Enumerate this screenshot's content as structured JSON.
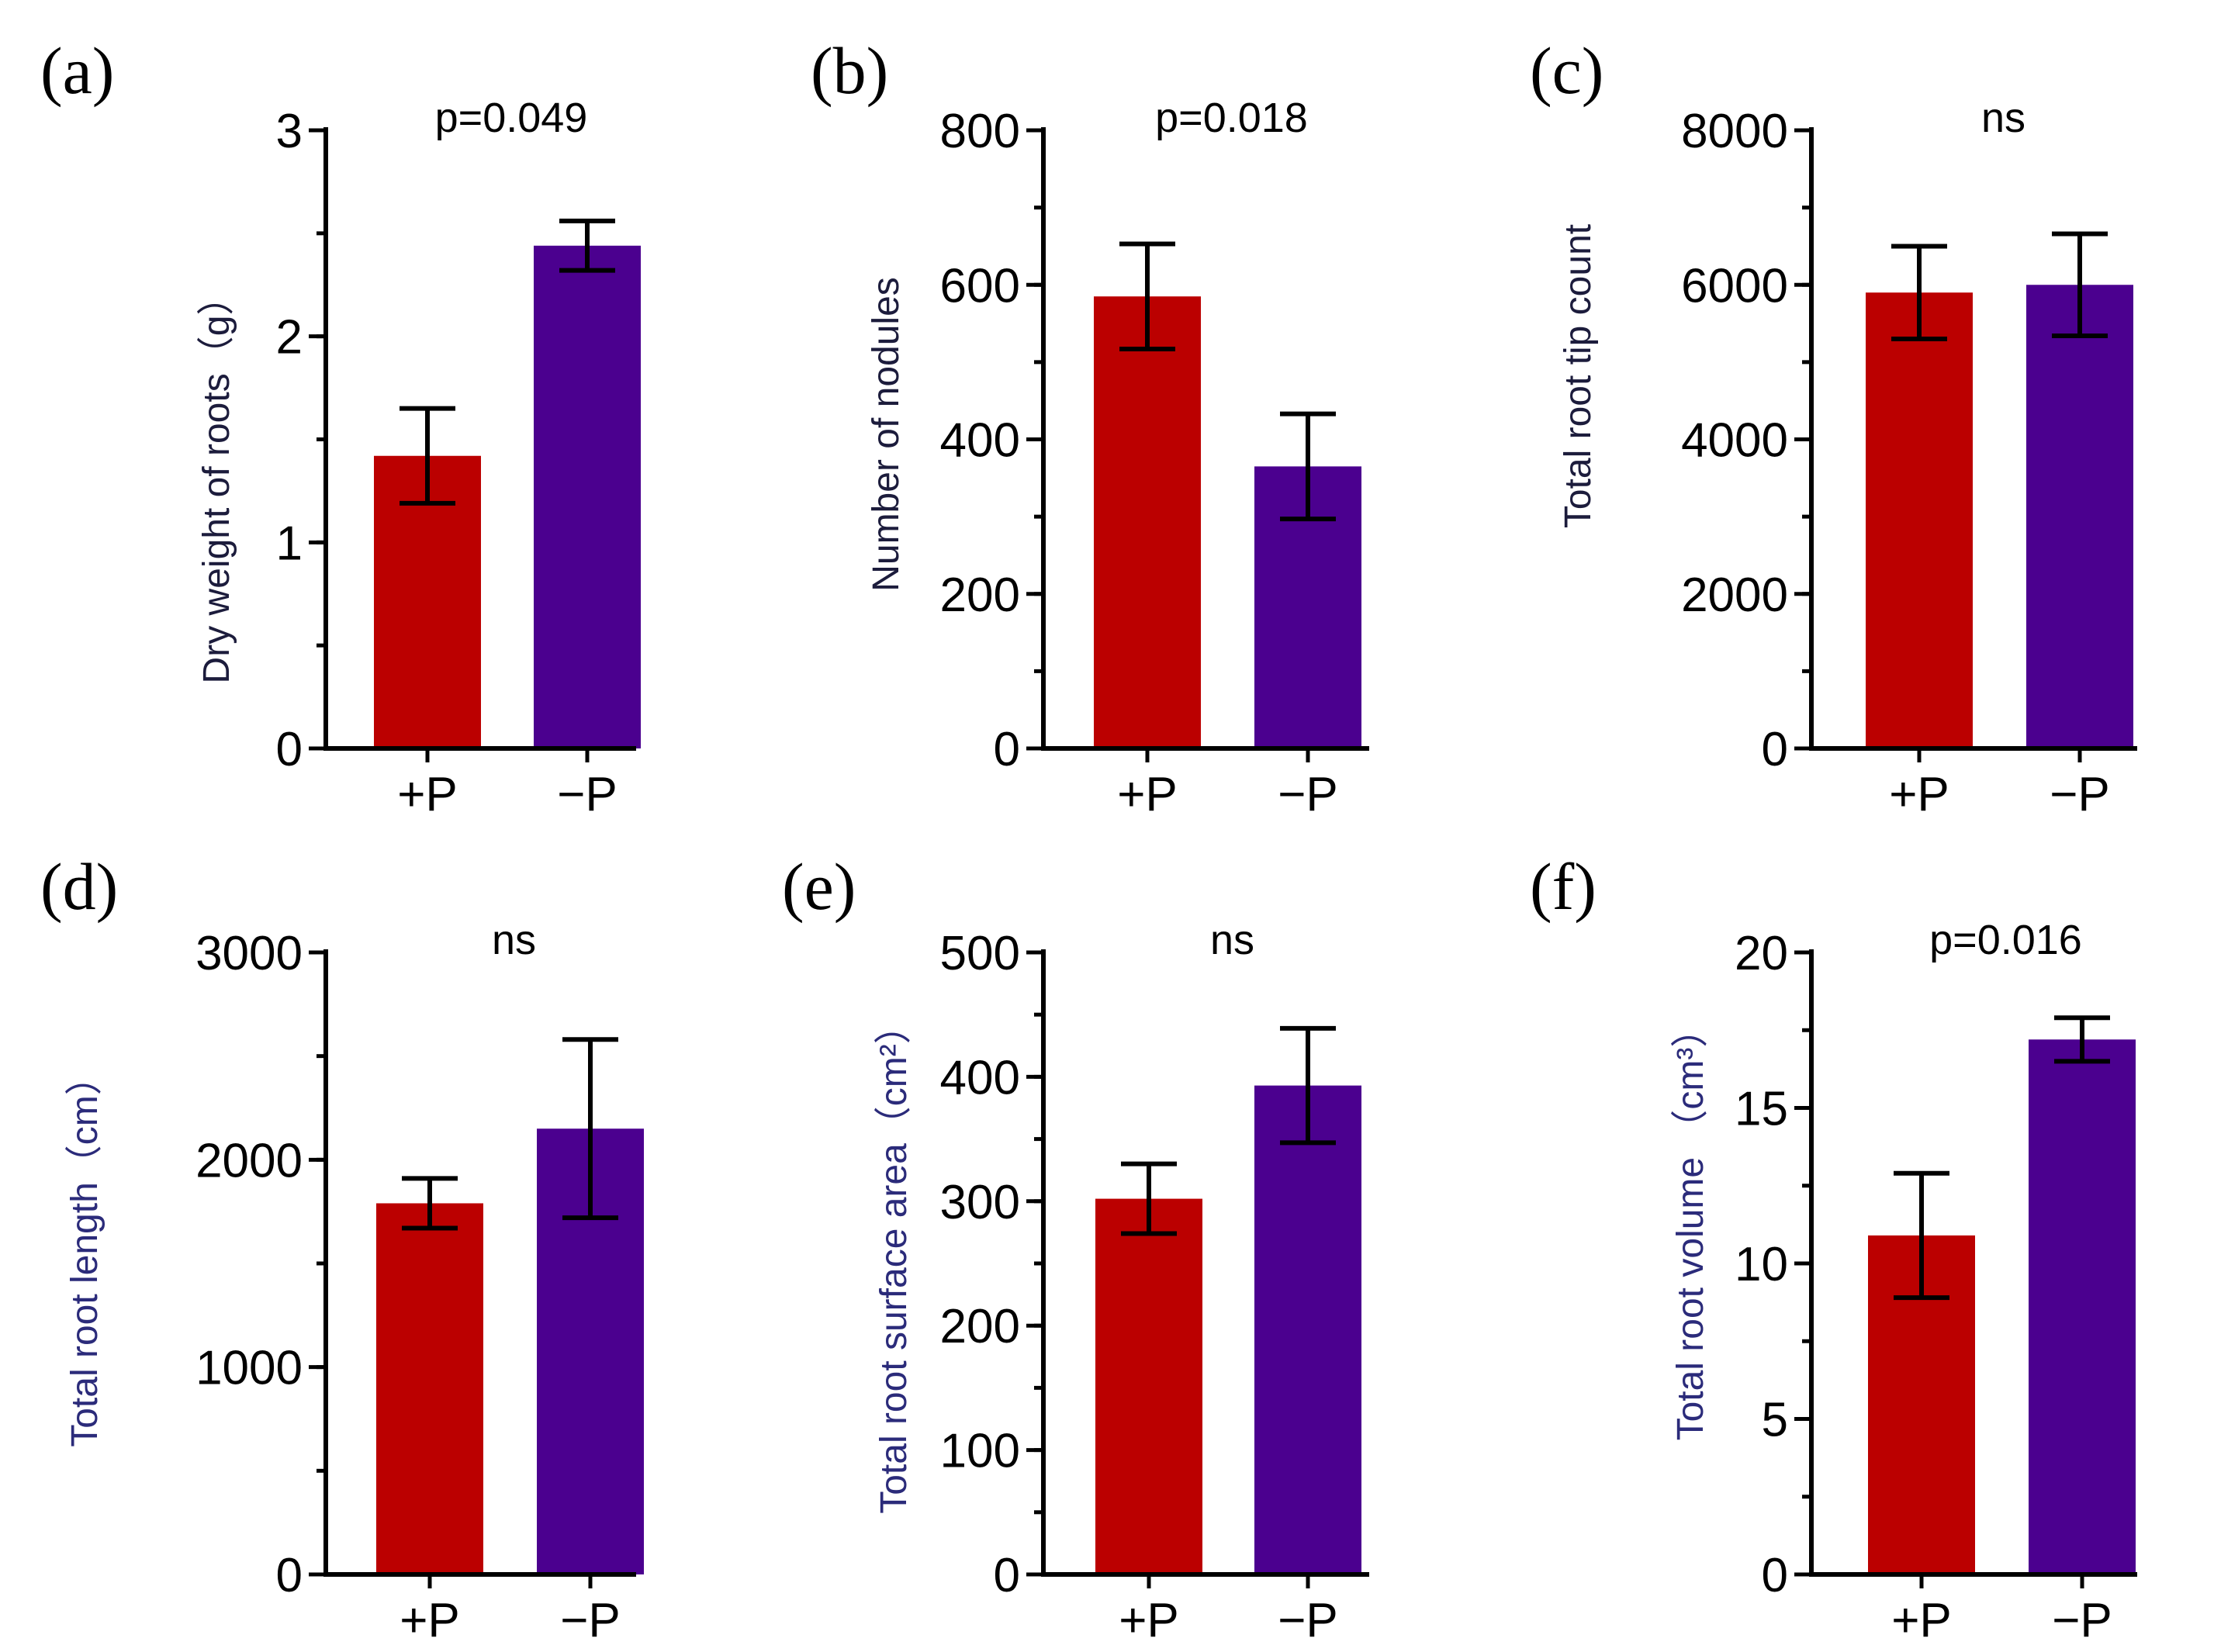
{
  "colors": {
    "plus": "#bb0000",
    "minus": "#4b008f",
    "axis": "#000000"
  },
  "chart_data": [
    {
      "type": "bar",
      "panel": "(a)",
      "categories": [
        "+P",
        "−P"
      ],
      "values": [
        1.42,
        2.44
      ],
      "errors": [
        0.23,
        0.12
      ],
      "ylabel": "Dry weight of roots（g）",
      "ylabel_color": "#1c1c3c",
      "annotation": "p=0.049",
      "ylim": [
        0,
        3
      ],
      "yticks": [
        {
          "v": 0,
          "t": "0"
        },
        {
          "v": 1,
          "t": "1"
        },
        {
          "v": 2,
          "t": "2"
        },
        {
          "v": 3,
          "t": "3"
        }
      ],
      "minor_step": 0.5
    },
    {
      "type": "bar",
      "panel": "(b)",
      "categories": [
        "+P",
        "−P"
      ],
      "values": [
        585,
        365
      ],
      "errors": [
        68,
        68
      ],
      "ylabel": "Number of nodules",
      "ylabel_color": "#1c1c3c",
      "annotation": "p=0.018",
      "ylim": [
        0,
        800
      ],
      "yticks": [
        {
          "v": 0,
          "t": "0"
        },
        {
          "v": 200,
          "t": "200"
        },
        {
          "v": 400,
          "t": "400"
        },
        {
          "v": 600,
          "t": "600"
        },
        {
          "v": 800,
          "t": "800"
        }
      ],
      "minor_step": 100
    },
    {
      "type": "bar",
      "panel": "(c)",
      "categories": [
        "+P",
        "−P"
      ],
      "values": [
        5900,
        6000
      ],
      "errors": [
        600,
        660
      ],
      "ylabel": "Total root tip count",
      "ylabel_color": "#1c1c3c",
      "annotation": "ns",
      "ylim": [
        0,
        8000
      ],
      "yticks": [
        {
          "v": 0,
          "t": "0"
        },
        {
          "v": 2000,
          "t": "2000"
        },
        {
          "v": 4000,
          "t": "4000"
        },
        {
          "v": 6000,
          "t": "6000"
        },
        {
          "v": 8000,
          "t": "8000"
        }
      ],
      "minor_step": 1000
    },
    {
      "type": "bar",
      "panel": "(d)",
      "categories": [
        "+P",
        "−P"
      ],
      "values": [
        1790,
        2150
      ],
      "errors": [
        120,
        430
      ],
      "ylabel": "Total root length（cm）",
      "ylabel_color": "#2b2b7a",
      "annotation": "ns",
      "ylim": [
        0,
        3000
      ],
      "yticks": [
        {
          "v": 0,
          "t": "0"
        },
        {
          "v": 1000,
          "t": "1000"
        },
        {
          "v": 2000,
          "t": "2000"
        },
        {
          "v": 3000,
          "t": "3000"
        }
      ],
      "minor_step": 500
    },
    {
      "type": "bar",
      "panel": "(e)",
      "categories": [
        "+P",
        "−P"
      ],
      "values": [
        302,
        393
      ],
      "errors": [
        28,
        46
      ],
      "ylabel": "Total root surface area（cm²）",
      "ylabel_color": "#2b2b7a",
      "annotation": "ns",
      "ylim": [
        0,
        500
      ],
      "yticks": [
        {
          "v": 0,
          "t": "0"
        },
        {
          "v": 100,
          "t": "100"
        },
        {
          "v": 200,
          "t": "200"
        },
        {
          "v": 300,
          "t": "300"
        },
        {
          "v": 400,
          "t": "400"
        },
        {
          "v": 500,
          "t": "500"
        }
      ],
      "minor_step": 50
    },
    {
      "type": "bar",
      "panel": "(f)",
      "categories": [
        "+P",
        "−P"
      ],
      "values": [
        10.9,
        17.2
      ],
      "errors": [
        2.0,
        0.7
      ],
      "ylabel": "Total root volume （cm³）",
      "ylabel_color": "#2b2b7a",
      "annotation": "p=0.016",
      "ylim": [
        0,
        20
      ],
      "yticks": [
        {
          "v": 0,
          "t": "0"
        },
        {
          "v": 5,
          "t": "5"
        },
        {
          "v": 10,
          "t": "10"
        },
        {
          "v": 15,
          "t": "15"
        },
        {
          "v": 20,
          "t": "20"
        }
      ],
      "minor_step": 2.5
    }
  ]
}
